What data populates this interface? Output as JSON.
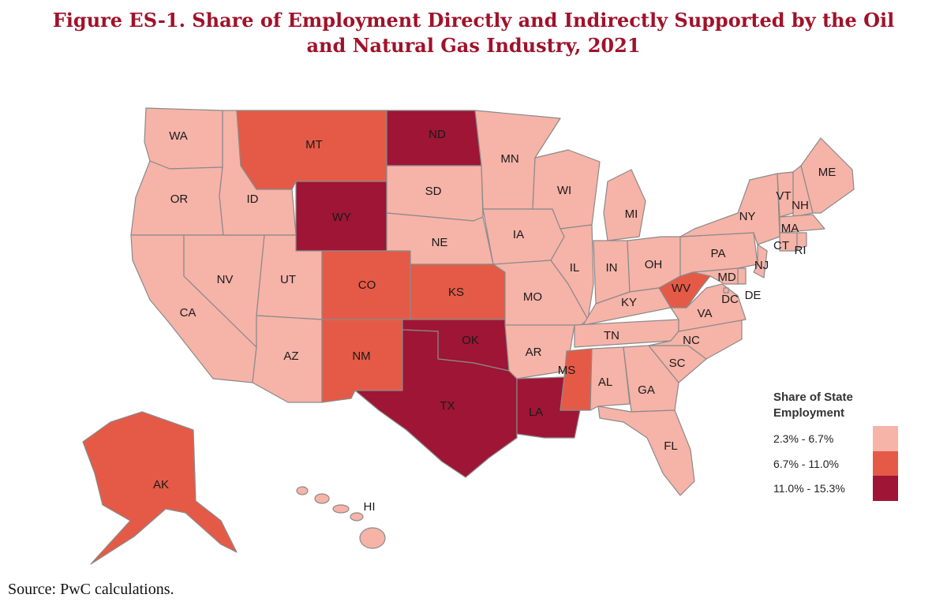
{
  "title": {
    "line1": "Figure ES-1.  Share of Employment Directly and Indirectly Supported by the Oil",
    "line2": "and Natural Gas Industry, 2021"
  },
  "legend": {
    "title_line1": "Share of State",
    "title_line2": "Employment",
    "classes": [
      {
        "label": "2.3% - 6.7%",
        "color": "#f6b3a8"
      },
      {
        "label": "6.7% - 11.0%",
        "color": "#e55a46"
      },
      {
        "label": "11.0% - 15.3%",
        "color": "#9e1535"
      }
    ]
  },
  "states": {
    "WA": 0,
    "OR": 0,
    "CA": 0,
    "NV": 0,
    "ID": 0,
    "MT": 1,
    "WY": 2,
    "UT": 0,
    "AZ": 0,
    "CO": 1,
    "NM": 1,
    "ND": 2,
    "SD": 0,
    "NE": 0,
    "KS": 1,
    "OK": 2,
    "TX": 2,
    "MN": 0,
    "IA": 0,
    "MO": 0,
    "AR": 0,
    "LA": 2,
    "WI": 0,
    "IL": 0,
    "MI": 0,
    "IN": 0,
    "OH": 0,
    "KY": 0,
    "TN": 0,
    "MS": 1,
    "AL": 0,
    "GA": 0,
    "FL": 0,
    "SC": 0,
    "NC": 0,
    "VA": 0,
    "WV": 1,
    "PA": 0,
    "NY": 0,
    "MD": 0,
    "DE": 0,
    "NJ": 0,
    "DC": 0,
    "CT": 0,
    "RI": 0,
    "MA": 0,
    "VT": 0,
    "NH": 0,
    "ME": 0,
    "AK": 1,
    "HI": 0
  },
  "source": "Source: PwC calculations."
}
